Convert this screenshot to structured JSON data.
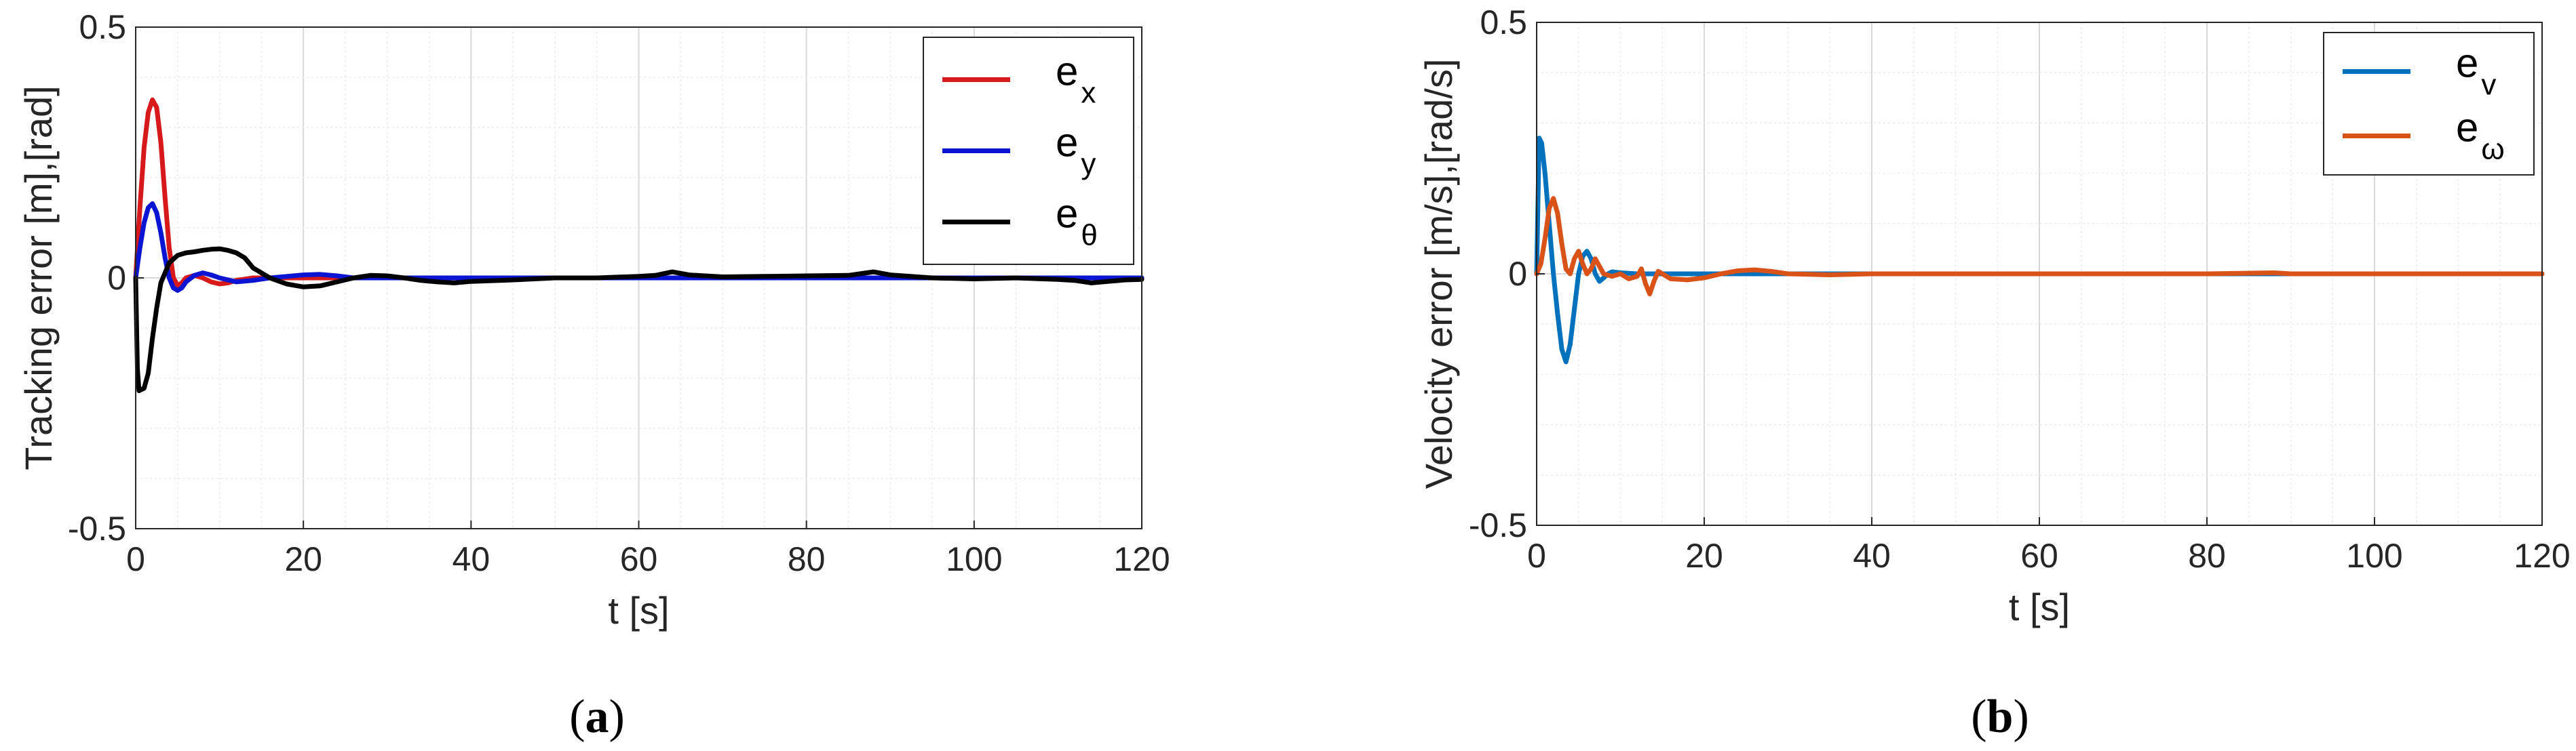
{
  "chart_data": [
    {
      "type": "line",
      "caption_open": "(",
      "caption": "a",
      "caption_close": ")",
      "xlabel": "t [s]",
      "ylabel": "Tracking error [m],[rad]",
      "xlim": [
        0,
        120
      ],
      "ylim": [
        -0.5,
        0.5
      ],
      "xticks": [
        "0",
        "20",
        "40",
        "60",
        "80",
        "100",
        "120"
      ],
      "yticks": [
        "-0.5",
        "0",
        "0.5"
      ],
      "grid": true,
      "minor_grid": true,
      "legend_position": "top-right",
      "series": [
        {
          "name": "e",
          "sub": "x",
          "color": "#d7191c",
          "x": [
            0,
            0.5,
            1,
            1.5,
            2,
            2.5,
            3,
            3.5,
            4,
            4.5,
            5,
            5.5,
            6,
            7,
            8,
            9,
            10,
            11,
            12,
            14,
            16,
            20,
            30,
            40,
            60,
            80,
            100,
            120
          ],
          "y": [
            0,
            0.14,
            0.26,
            0.33,
            0.355,
            0.34,
            0.27,
            0.16,
            0.06,
            0.0,
            -0.015,
            -0.01,
            0.0,
            0.005,
            0.0,
            -0.008,
            -0.012,
            -0.01,
            -0.005,
            0.0,
            0.0,
            0.0,
            0.0,
            0.0,
            0.0,
            0.0,
            0.0,
            0.0
          ]
        },
        {
          "name": "e",
          "sub": "y",
          "color": "#0a14d2",
          "x": [
            0,
            0.5,
            1,
            1.5,
            2,
            2.5,
            3,
            3.5,
            4,
            4.5,
            5,
            5.5,
            6,
            7,
            8,
            9,
            10,
            12,
            14,
            16,
            18,
            20,
            22,
            24,
            26,
            30,
            40,
            60,
            80,
            100,
            120
          ],
          "y": [
            0,
            0.06,
            0.11,
            0.14,
            0.148,
            0.13,
            0.09,
            0.04,
            0.0,
            -0.02,
            -0.025,
            -0.02,
            -0.008,
            0.005,
            0.01,
            0.006,
            0.0,
            -0.008,
            -0.005,
            0.0,
            0.003,
            0.006,
            0.007,
            0.004,
            0.0,
            0.0,
            0.0,
            0.0,
            0.0,
            0.0,
            0.0
          ]
        },
        {
          "name": "e",
          "sub": "θ",
          "color": "#000000",
          "x": [
            0,
            0.2,
            0.4,
            1,
            1.5,
            2,
            2.5,
            3,
            4,
            5,
            6,
            7,
            8,
            9,
            10,
            11,
            12,
            13,
            14,
            16,
            18,
            20,
            22,
            24,
            26,
            28,
            30,
            32,
            34,
            36,
            38,
            40,
            45,
            50,
            55,
            60,
            62,
            64,
            66,
            70,
            75,
            80,
            85,
            88,
            90,
            95,
            100,
            105,
            110,
            112,
            114,
            116,
            118,
            120
          ],
          "y": [
            0,
            -0.18,
            -0.225,
            -0.22,
            -0.19,
            -0.12,
            -0.06,
            -0.01,
            0.03,
            0.045,
            0.05,
            0.052,
            0.055,
            0.057,
            0.058,
            0.055,
            0.05,
            0.04,
            0.02,
            0.0,
            -0.012,
            -0.018,
            -0.016,
            -0.008,
            0.0,
            0.005,
            0.004,
            0.0,
            -0.005,
            -0.008,
            -0.01,
            -0.007,
            -0.004,
            0.0,
            0.0,
            0.003,
            0.005,
            0.012,
            0.006,
            0.002,
            0.003,
            0.004,
            0.005,
            0.012,
            0.006,
            0.0,
            -0.002,
            0.0,
            -0.003,
            -0.005,
            -0.01,
            -0.007,
            -0.004,
            -0.003
          ]
        }
      ]
    },
    {
      "type": "line",
      "caption_open": "(",
      "caption": "b",
      "caption_close": ")",
      "xlabel": "t [s]",
      "ylabel": "Velocity error [m/s],[rad/s]",
      "xlim": [
        0,
        120
      ],
      "ylim": [
        -0.5,
        0.5
      ],
      "xticks": [
        "0",
        "20",
        "40",
        "60",
        "80",
        "100",
        "120"
      ],
      "yticks": [
        "-0.5",
        "0",
        "0.5"
      ],
      "grid": true,
      "minor_grid": true,
      "legend_position": "top-right",
      "series": [
        {
          "name": "e",
          "sub": "v",
          "color": "#0072bd",
          "x": [
            0,
            0.3,
            0.6,
            1,
            1.5,
            2,
            2.5,
            3,
            3.5,
            4,
            4.5,
            5,
            5.5,
            6,
            6.5,
            7,
            7.5,
            8,
            8.5,
            9,
            10,
            12,
            14,
            16,
            20,
            30,
            40,
            60,
            80,
            100,
            120
          ],
          "y": [
            0,
            0.27,
            0.26,
            0.2,
            0.1,
            0.0,
            -0.08,
            -0.15,
            -0.175,
            -0.14,
            -0.07,
            0.0,
            0.035,
            0.045,
            0.03,
            0.0,
            -0.015,
            -0.008,
            0.0,
            0.004,
            0.002,
            0.0,
            0.0,
            0.0,
            0.0,
            0.0,
            0.0,
            0.0,
            0.0,
            0.0,
            0.0
          ]
        },
        {
          "name": "e",
          "sub": "ω",
          "color": "#d95319",
          "x": [
            0,
            0.5,
            1,
            1.5,
            2,
            2.5,
            3,
            3.5,
            4,
            4.5,
            5,
            5.5,
            6,
            6.5,
            7,
            7.5,
            8,
            9,
            10,
            11,
            12,
            12.5,
            13,
            13.5,
            14,
            14.5,
            15,
            16,
            18,
            20,
            22,
            24,
            26,
            28,
            30,
            35,
            40,
            50,
            60,
            70,
            80,
            88,
            90,
            100,
            110,
            120
          ],
          "y": [
            0,
            0.02,
            0.07,
            0.13,
            0.15,
            0.12,
            0.06,
            0.01,
            0.0,
            0.03,
            0.045,
            0.02,
            0.0,
            0.01,
            0.03,
            0.015,
            0.0,
            -0.005,
            0.0,
            -0.01,
            -0.005,
            0.01,
            -0.02,
            -0.04,
            -0.015,
            0.005,
            0.0,
            -0.01,
            -0.012,
            -0.008,
            0.0,
            0.006,
            0.008,
            0.005,
            0.0,
            -0.002,
            0.0,
            0.0,
            0.0,
            0.0,
            0.0,
            0.002,
            0.0,
            0.0,
            0.0,
            0.0
          ]
        }
      ]
    }
  ]
}
